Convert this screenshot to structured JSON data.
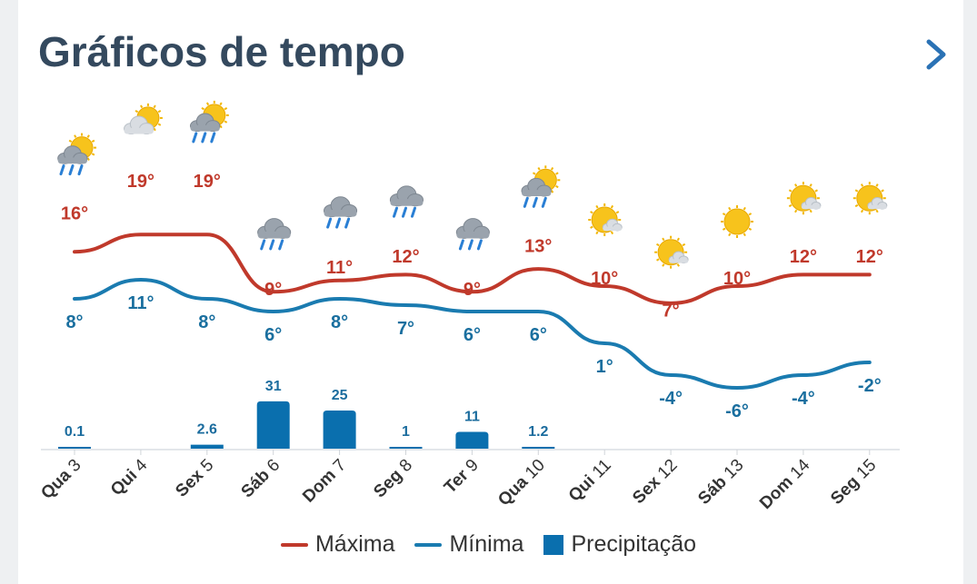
{
  "header": {
    "title": "Gráficos de tempo",
    "next_icon": "chevron-right-icon"
  },
  "colors": {
    "max": "#c0392b",
    "min": "#1a7bb0",
    "precip": "#0a6fae",
    "tick": "#333333",
    "title": "#34495e",
    "accent": "#2a72b5"
  },
  "chart_data": {
    "type": "line",
    "categories": [
      "Qua 3",
      "Qui 4",
      "Sex 5",
      "Sáb 6",
      "Dom 7",
      "Seg 8",
      "Ter 9",
      "Qua 10",
      "Qui 11",
      "Sex 12",
      "Sáb 13",
      "Dom 14",
      "Seg 15"
    ],
    "max": [
      16,
      19,
      19,
      9,
      11,
      12,
      9,
      13,
      10,
      7,
      10,
      12,
      12
    ],
    "min": [
      8,
      11,
      8,
      6,
      8,
      7,
      6,
      6,
      1,
      -4,
      -6,
      -4,
      -2
    ],
    "max_labels": [
      "16°",
      "19°",
      "19°",
      "9°",
      "11°",
      "12°",
      "9°",
      "13°",
      "10°",
      "7°",
      "10°",
      "12°",
      "12°"
    ],
    "min_labels": [
      "8°",
      "11°",
      "8°",
      "6°",
      "8°",
      "7°",
      "6°",
      "6°",
      "1°",
      "-4°",
      "-6°",
      "-4°",
      "-2°"
    ],
    "precip": [
      0.1,
      null,
      2.6,
      31,
      25,
      1,
      11,
      1.2,
      null,
      null,
      null,
      null,
      null
    ],
    "precip_labels": [
      "0.1",
      "",
      "2.6",
      "31",
      "25",
      "1",
      "11",
      "1.2",
      "",
      "",
      "",
      "",
      ""
    ],
    "icons": [
      "sun-cloud-rain-icon",
      "sun-cloud-icon",
      "sun-cloud-rain-icon",
      "cloud-rain-icon",
      "cloud-rain-icon",
      "cloud-rain-icon",
      "cloud-rain-icon",
      "sun-cloud-rain-icon",
      "sun-small-cloud-icon",
      "sun-small-cloud-icon",
      "sun-icon",
      "sun-small-cloud-icon",
      "sun-small-cloud-icon"
    ],
    "legend": [
      {
        "label": "Máxima",
        "kind": "line",
        "color": "#c0392b"
      },
      {
        "label": "Mínima",
        "kind": "line",
        "color": "#1a7bb0"
      },
      {
        "label": "Precipitação",
        "kind": "box",
        "color": "#0a6fae"
      }
    ],
    "legend_position": "bottom",
    "grid": false
  }
}
